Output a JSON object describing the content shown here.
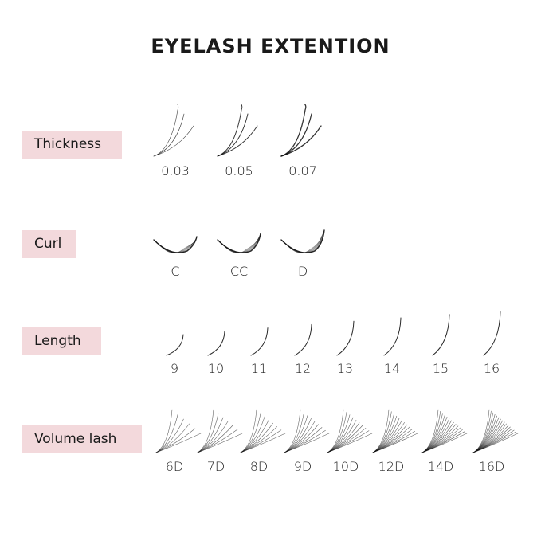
{
  "title": "EYELASH EXTENTION",
  "colors": {
    "label_bg": "#f3d9dc",
    "lash": "#111111"
  },
  "rows": [
    {
      "label": "Thickness",
      "kind": "thickness",
      "items": [
        "0.03",
        "0.05",
        "0.07"
      ]
    },
    {
      "label": "Curl",
      "kind": "curl",
      "items": [
        "C",
        "CC",
        "D"
      ]
    },
    {
      "label": "Length",
      "kind": "length",
      "items": [
        "9",
        "10",
        "11",
        "12",
        "13",
        "14",
        "15",
        "16"
      ]
    },
    {
      "label": "Volume lash",
      "kind": "volume",
      "items": [
        "6D",
        "7D",
        "8D",
        "9D",
        "10D",
        "12D",
        "14D",
        "16D"
      ]
    }
  ]
}
